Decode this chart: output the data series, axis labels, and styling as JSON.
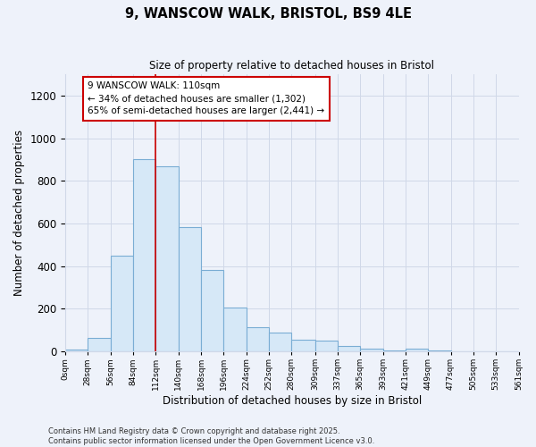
{
  "title_line1": "9, WANSCOW WALK, BRISTOL, BS9 4LE",
  "title_line2": "Size of property relative to detached houses in Bristol",
  "xlabel": "Distribution of detached houses by size in Bristol",
  "ylabel": "Number of detached properties",
  "bin_edges": [
    0,
    28,
    56,
    84,
    112,
    140,
    168,
    196,
    224,
    252,
    280,
    309,
    337,
    365,
    393,
    421,
    449,
    477,
    505,
    533,
    561
  ],
  "bar_heights": [
    8,
    65,
    450,
    900,
    870,
    585,
    382,
    205,
    115,
    88,
    55,
    50,
    27,
    12,
    5,
    15,
    4,
    2,
    1,
    1
  ],
  "bar_color": "#d6e8f7",
  "bar_edge_color": "#7aadd4",
  "vline_x": 112,
  "vline_color": "#cc0000",
  "annotation_text": "9 WANSCOW WALK: 110sqm\n← 34% of detached houses are smaller (1,302)\n65% of semi-detached houses are larger (2,441) →",
  "annotation_box_color": "#ffffff",
  "annotation_edge_color": "#cc0000",
  "grid_color": "#d0d8e8",
  "bg_color": "#eef2fa",
  "ylim": [
    0,
    1300
  ],
  "yticks": [
    0,
    200,
    400,
    600,
    800,
    1000,
    1200
  ],
  "tick_labels": [
    "0sqm",
    "28sqm",
    "56sqm",
    "84sqm",
    "112sqm",
    "140sqm",
    "168sqm",
    "196sqm",
    "224sqm",
    "252sqm",
    "280sqm",
    "309sqm",
    "337sqm",
    "365sqm",
    "393sqm",
    "421sqm",
    "449sqm",
    "477sqm",
    "505sqm",
    "533sqm",
    "561sqm"
  ],
  "footnote": "Contains HM Land Registry data © Crown copyright and database right 2025.\nContains public sector information licensed under the Open Government Licence v3.0."
}
